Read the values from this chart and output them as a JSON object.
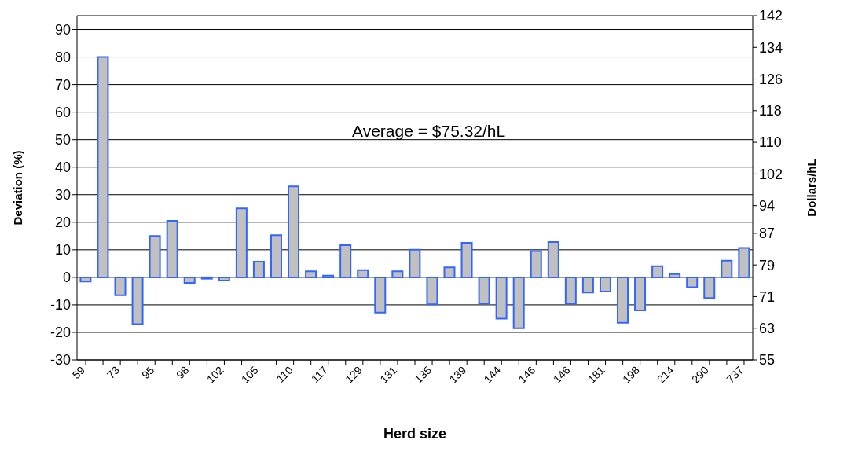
{
  "chart_data": {
    "type": "bar",
    "xlabel": "Herd size",
    "ylabel": "Deviation (%)",
    "y2label": "Dollars/hL",
    "annotations": [
      "Average = $75.32/hL"
    ],
    "categories": [
      "59",
      null,
      "73",
      null,
      "95",
      null,
      "98",
      null,
      "102",
      null,
      "105",
      null,
      "110",
      null,
      "117",
      null,
      "129",
      null,
      "131",
      null,
      "135",
      null,
      "139",
      null,
      "144",
      null,
      "146",
      null,
      "146",
      null,
      "181",
      null,
      "198",
      null,
      "214",
      null,
      "290",
      null,
      "737"
    ],
    "values": [
      -1.5,
      80,
      -6.5,
      -17,
      15,
      20.5,
      -2,
      -0.5,
      -1.2,
      25,
      5.7,
      15.3,
      33,
      2.2,
      0.6,
      11.7,
      2.6,
      -12.8,
      2.2,
      10,
      -9.8,
      3.6,
      12.5,
      -9.5,
      -15,
      -18.5,
      9.5,
      12.8,
      -9.5,
      -5.5,
      -5.2,
      -16.5,
      -12,
      4,
      1.2,
      -3.6,
      -7.5,
      6,
      10.7
    ],
    "color": "#c0c0c0",
    "ylim": [
      -30,
      95
    ],
    "yticks": [
      -30,
      -20,
      -10,
      0,
      10,
      20,
      30,
      40,
      50,
      60,
      70,
      80,
      90
    ],
    "y2lim": [
      55,
      142
    ],
    "y2ticks": [
      55,
      63,
      71,
      79,
      87,
      94,
      102,
      110,
      118,
      126,
      134,
      142
    ],
    "grid": "y",
    "legend": false
  }
}
